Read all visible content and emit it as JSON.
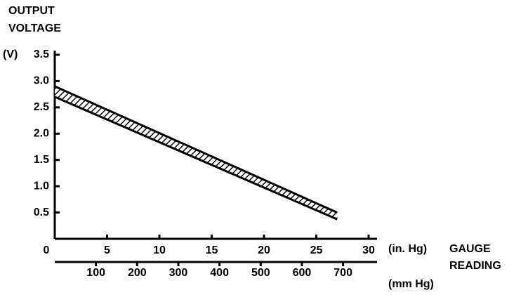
{
  "chart_data": {
    "type": "band",
    "title": [
      "OUTPUT",
      "VOLTAGE"
    ],
    "y_unit": "(V)",
    "x_unit": "(in. Hg)",
    "x_label": [
      "GAUGE",
      "READING"
    ],
    "x2_unit": "(mm Hg)",
    "xlim": [
      0,
      30
    ],
    "xticks": [
      0,
      5,
      10,
      15,
      20,
      25,
      30
    ],
    "x2lim": [
      0,
      762
    ],
    "x2ticks": [
      100,
      200,
      300,
      400,
      500,
      600,
      700
    ],
    "ylim": [
      0,
      3.5
    ],
    "yticks": [
      0.5,
      {
        "value": 1,
        "label": "1.0"
      },
      1.5,
      {
        "value": 2,
        "label": "2.0"
      },
      2.5,
      {
        "value": 3,
        "label": "3.0"
      },
      3.5
    ],
    "band": {
      "x": [
        0,
        27
      ],
      "upper": [
        2.9,
        0.5
      ],
      "lower": [
        2.7,
        0.37
      ]
    },
    "color": "#000000"
  }
}
